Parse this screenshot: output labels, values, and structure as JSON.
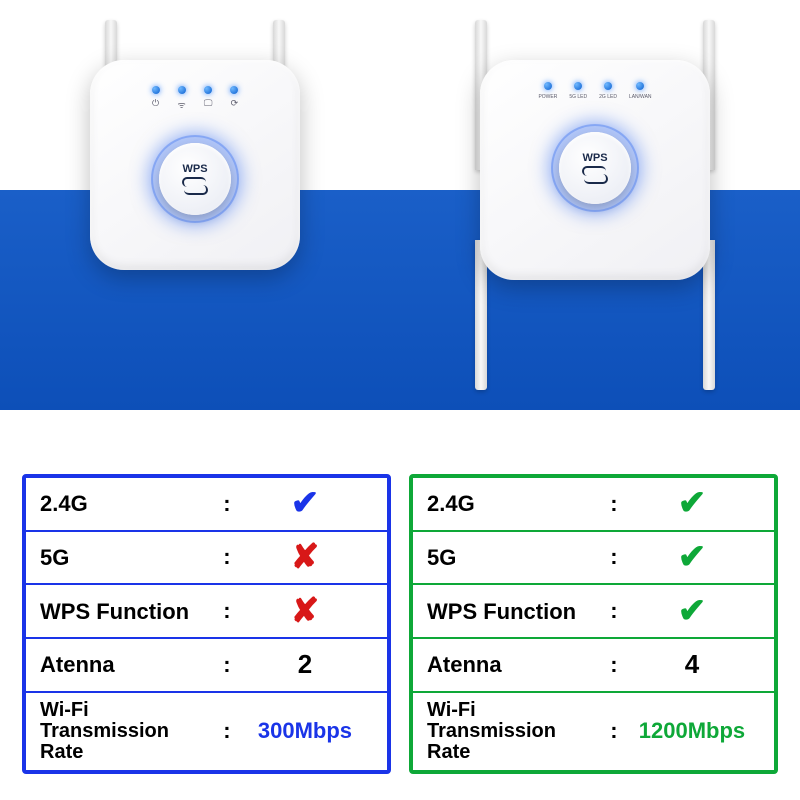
{
  "colors": {
    "blue": "#1a34e8",
    "green": "#0ea838",
    "red": "#d81818",
    "band": "#0d4fb8"
  },
  "device_left": {
    "antenna_count": 2,
    "wps_label": "WPS",
    "led_icons": [
      "⏻",
      "ᯤ",
      "🖵",
      "⟳"
    ]
  },
  "device_right": {
    "antenna_count": 4,
    "wps_label": "WPS",
    "led_labels": [
      "POWER",
      "5G LED",
      "2G LED",
      "LAN/WAN"
    ]
  },
  "spec_left": {
    "border_color": "#1a34e8",
    "rows": [
      {
        "label": "2.4G",
        "mark": "check",
        "mark_color": "#1a34e8"
      },
      {
        "label": "5G",
        "mark": "cross",
        "mark_color": "#d81818"
      },
      {
        "label": "WPS Function",
        "mark": "cross",
        "mark_color": "#d81818"
      },
      {
        "label": "Atenna",
        "value": "2",
        "value_color": "#000000"
      },
      {
        "label": "Wi-Fi Transmission Rate",
        "value": "300Mbps",
        "value_color": "#1a34e8",
        "multiline": true
      }
    ]
  },
  "spec_right": {
    "border_color": "#0ea838",
    "rows": [
      {
        "label": "2.4G",
        "mark": "check",
        "mark_color": "#0ea838"
      },
      {
        "label": "5G",
        "mark": "check",
        "mark_color": "#0ea838"
      },
      {
        "label": "WPS Function",
        "mark": "check",
        "mark_color": "#0ea838"
      },
      {
        "label": "Atenna",
        "value": "4",
        "value_color": "#000000"
      },
      {
        "label": "Wi-Fi Transmission Rate",
        "value": "1200Mbps",
        "value_color": "#0ea838",
        "multiline": true
      }
    ]
  }
}
